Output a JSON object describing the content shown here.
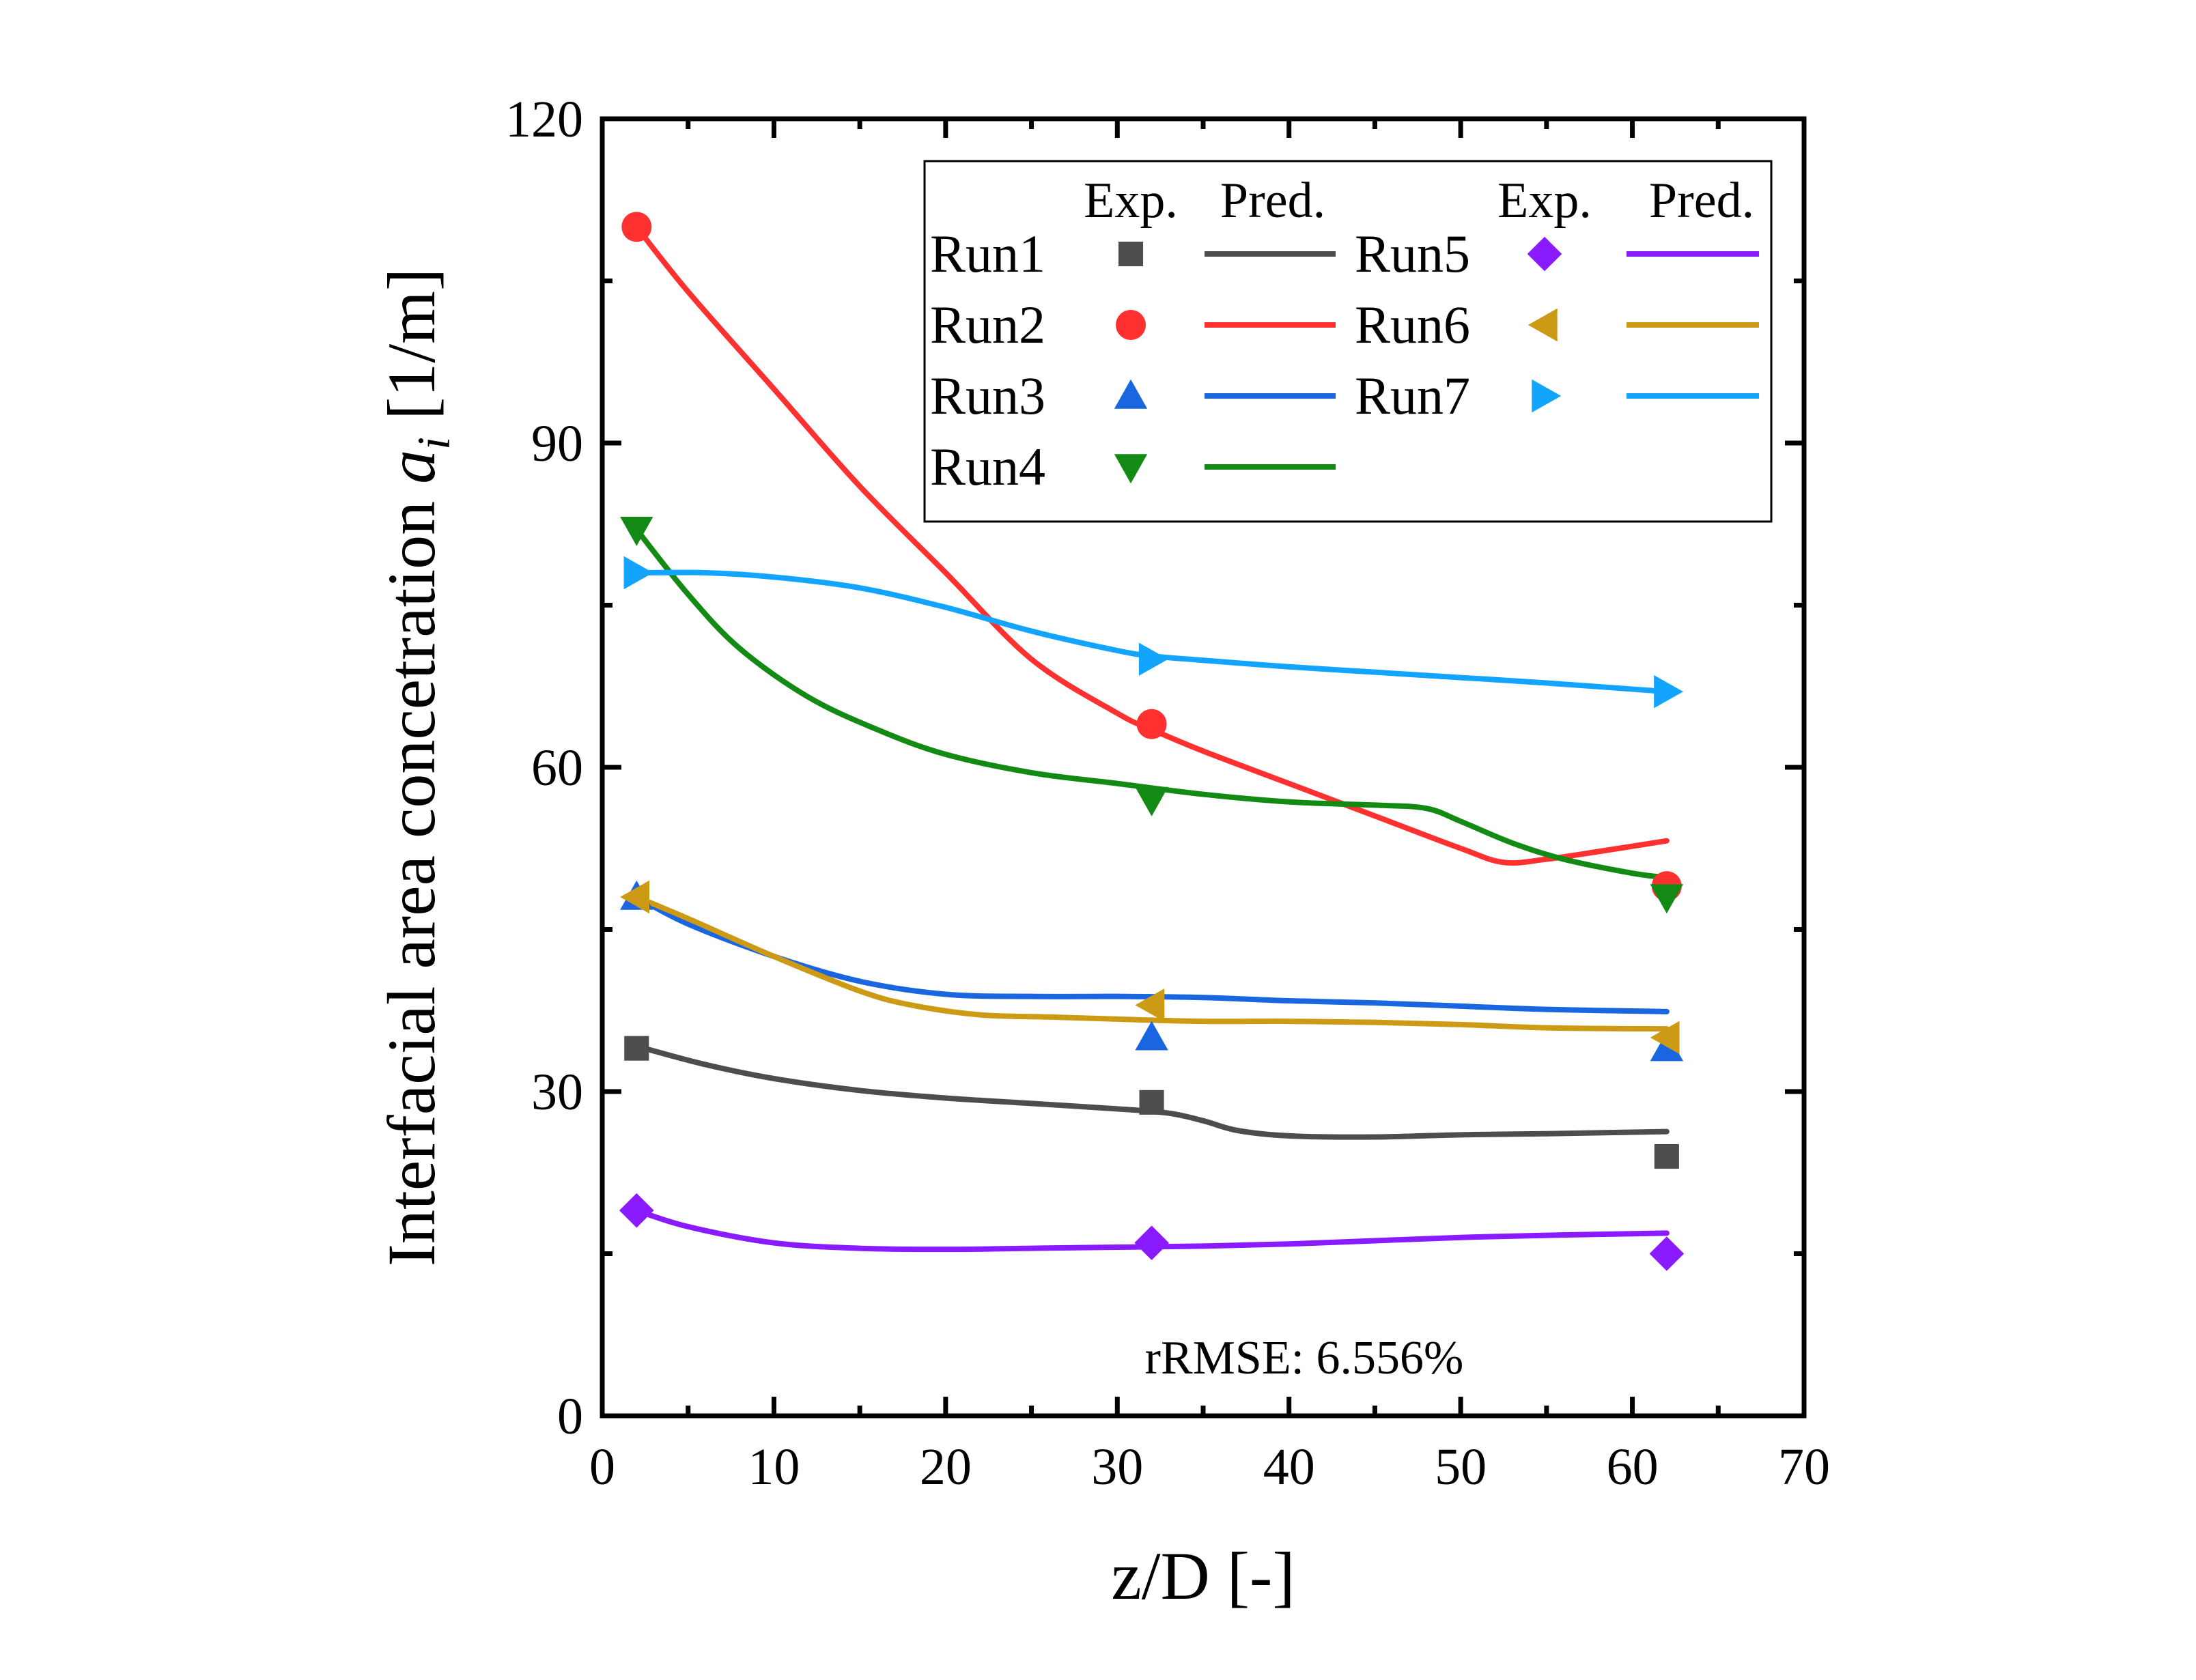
{
  "chart_data": {
    "type": "line",
    "xlabel": "z/D [-]",
    "ylabel_main": "Interfacial area concetration ",
    "ylabel_symbol": "a",
    "ylabel_subscript": "i",
    "ylabel_unit": " [1/m]",
    "xlim": [
      0,
      70
    ],
    "ylim": [
      0,
      120
    ],
    "xticks": [
      0,
      10,
      20,
      30,
      40,
      50,
      60,
      70
    ],
    "yticks": [
      0,
      30,
      60,
      90,
      120
    ],
    "annotation": "rRMSE: 6.556%",
    "legend": {
      "position": "top-right",
      "header_exp": "Exp.",
      "header_pred": "Pred."
    },
    "series": [
      {
        "name": "Run1",
        "color": "#4d4d4d",
        "marker": "square",
        "exp": [
          {
            "x": 2,
            "y": 34
          },
          {
            "x": 32,
            "y": 29
          },
          {
            "x": 62,
            "y": 24
          }
        ],
        "pred": [
          [
            2,
            34.2
          ],
          [
            6,
            32.5
          ],
          [
            10,
            31.2
          ],
          [
            15,
            30.1
          ],
          [
            20,
            29.4
          ],
          [
            25,
            28.9
          ],
          [
            30,
            28.4
          ],
          [
            33,
            28.0
          ],
          [
            35,
            27.3
          ],
          [
            37,
            26.4
          ],
          [
            40,
            25.9
          ],
          [
            45,
            25.8
          ],
          [
            50,
            26.0
          ],
          [
            55,
            26.1
          ],
          [
            62,
            26.3
          ]
        ]
      },
      {
        "name": "Run2",
        "color": "#ff3030",
        "marker": "circle",
        "exp": [
          {
            "x": 2,
            "y": 110
          },
          {
            "x": 32,
            "y": 64
          },
          {
            "x": 62,
            "y": 49
          }
        ],
        "pred": [
          [
            2,
            110
          ],
          [
            5,
            104
          ],
          [
            10,
            95
          ],
          [
            15,
            86
          ],
          [
            20,
            78
          ],
          [
            25,
            70
          ],
          [
            30,
            65
          ],
          [
            32,
            63.5
          ],
          [
            35,
            61.5
          ],
          [
            40,
            58.5
          ],
          [
            45,
            55.5
          ],
          [
            50,
            52.5
          ],
          [
            52.5,
            51.2
          ],
          [
            55,
            51.5
          ],
          [
            58,
            52.2
          ],
          [
            62,
            53.2
          ]
        ]
      },
      {
        "name": "Run3",
        "color": "#1a66e0",
        "marker": "triangle-up",
        "exp": [
          {
            "x": 2,
            "y": 48
          },
          {
            "x": 32,
            "y": 35
          },
          {
            "x": 62,
            "y": 34
          }
        ],
        "pred": [
          [
            2,
            48
          ],
          [
            5,
            45.5
          ],
          [
            10,
            42.5
          ],
          [
            15,
            40.2
          ],
          [
            20,
            39
          ],
          [
            25,
            38.8
          ],
          [
            30,
            38.8
          ],
          [
            35,
            38.7
          ],
          [
            40,
            38.4
          ],
          [
            45,
            38.2
          ],
          [
            50,
            37.9
          ],
          [
            55,
            37.6
          ],
          [
            62,
            37.4
          ]
        ]
      },
      {
        "name": "Run4",
        "color": "#138a13",
        "marker": "triangle-down",
        "exp": [
          {
            "x": 2,
            "y": 82
          },
          {
            "x": 32,
            "y": 57
          },
          {
            "x": 62,
            "y": 48
          }
        ],
        "pred": [
          [
            2,
            82
          ],
          [
            5,
            76
          ],
          [
            8,
            71
          ],
          [
            12,
            66.5
          ],
          [
            16,
            63.5
          ],
          [
            20,
            61.2
          ],
          [
            25,
            59.5
          ],
          [
            30,
            58.5
          ],
          [
            35,
            57.5
          ],
          [
            40,
            56.8
          ],
          [
            45,
            56.5
          ],
          [
            48,
            56.2
          ],
          [
            50,
            55
          ],
          [
            53,
            53
          ],
          [
            56,
            51.5
          ],
          [
            60,
            50.2
          ],
          [
            62,
            49.8
          ]
        ]
      },
      {
        "name": "Run5",
        "color": "#8a1aff",
        "marker": "diamond",
        "exp": [
          {
            "x": 2,
            "y": 19
          },
          {
            "x": 32,
            "y": 16
          },
          {
            "x": 62,
            "y": 15
          }
        ],
        "pred": [
          [
            2,
            19
          ],
          [
            5,
            17.5
          ],
          [
            10,
            16
          ],
          [
            15,
            15.5
          ],
          [
            20,
            15.4
          ],
          [
            25,
            15.5
          ],
          [
            30,
            15.6
          ],
          [
            35,
            15.7
          ],
          [
            40,
            15.9
          ],
          [
            45,
            16.2
          ],
          [
            50,
            16.5
          ],
          [
            55,
            16.7
          ],
          [
            62,
            16.9
          ]
        ]
      },
      {
        "name": "Run6",
        "color": "#cc9a14",
        "marker": "triangle-left",
        "exp": [
          {
            "x": 2,
            "y": 48
          },
          {
            "x": 32,
            "y": 38
          },
          {
            "x": 62,
            "y": 35
          }
        ],
        "pred": [
          [
            2,
            48
          ],
          [
            5,
            46
          ],
          [
            10,
            42.5
          ],
          [
            15,
            39.3
          ],
          [
            18,
            38
          ],
          [
            22,
            37.1
          ],
          [
            26,
            36.9
          ],
          [
            30,
            36.7
          ],
          [
            35,
            36.5
          ],
          [
            40,
            36.5
          ],
          [
            45,
            36.4
          ],
          [
            50,
            36.2
          ],
          [
            55,
            35.9
          ],
          [
            62,
            35.8
          ]
        ]
      },
      {
        "name": "Run7",
        "color": "#12a4ff",
        "marker": "triangle-right",
        "exp": [
          {
            "x": 2,
            "y": 78
          },
          {
            "x": 32,
            "y": 70
          },
          {
            "x": 62,
            "y": 67
          }
        ],
        "pred": [
          [
            2,
            78
          ],
          [
            6,
            78
          ],
          [
            10,
            77.6
          ],
          [
            15,
            76.6
          ],
          [
            20,
            74.8
          ],
          [
            25,
            72.6
          ],
          [
            30,
            70.8
          ],
          [
            32,
            70.3
          ],
          [
            35,
            69.9
          ],
          [
            40,
            69.3
          ],
          [
            45,
            68.8
          ],
          [
            50,
            68.3
          ],
          [
            55,
            67.8
          ],
          [
            62,
            67
          ]
        ]
      }
    ]
  }
}
